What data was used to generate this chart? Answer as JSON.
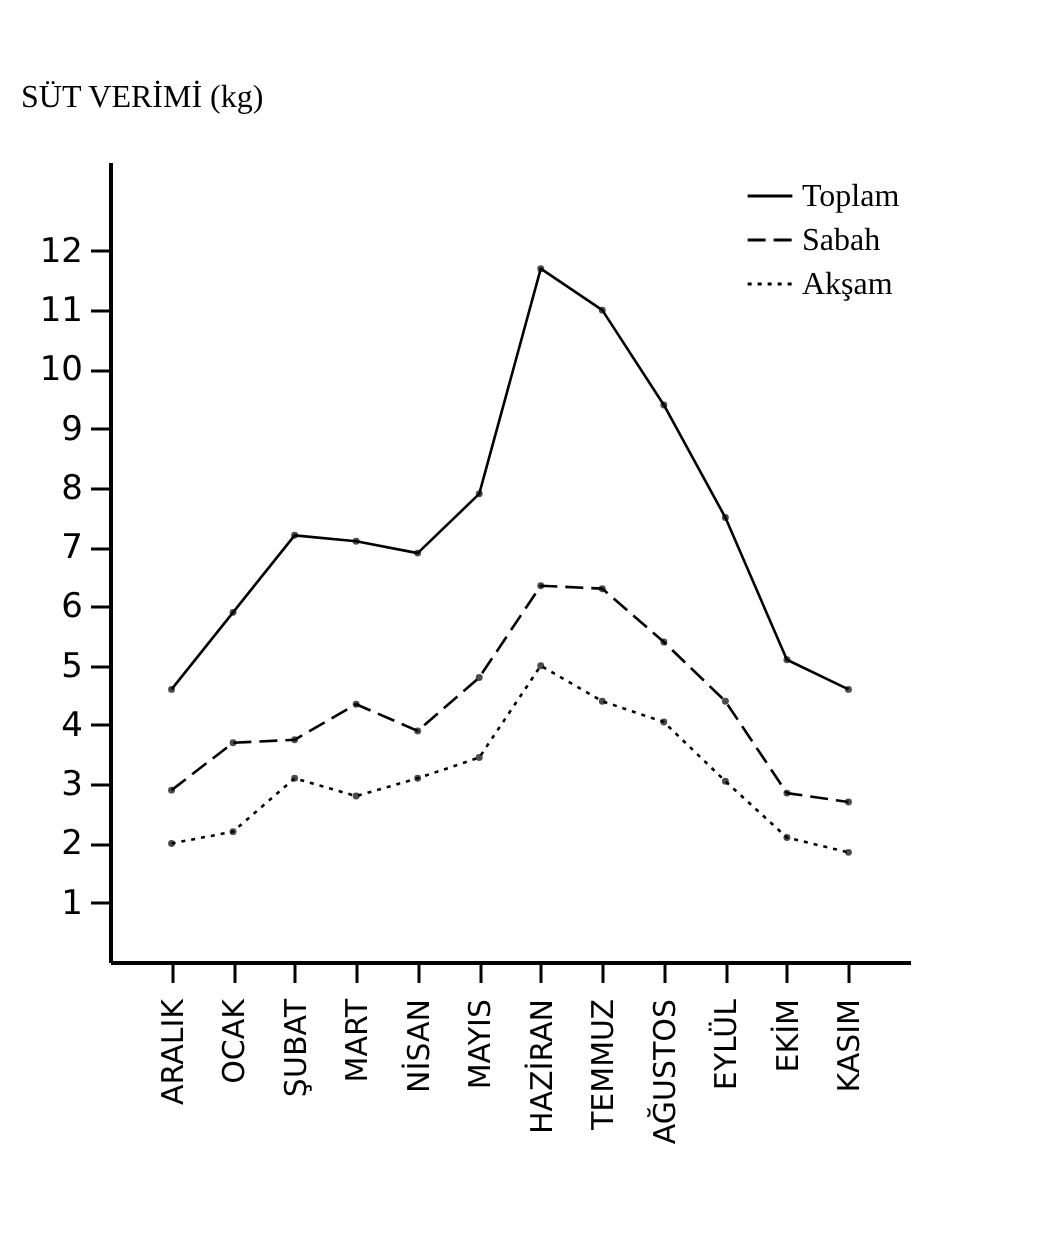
{
  "chart_data": {
    "type": "line",
    "ylabel": "SÜT VERİMİ (kg)",
    "categories": [
      "ARALIK",
      "OCAK",
      "ŞUBAT",
      "MART",
      "NİSAN",
      "MAYIS",
      "HAZİRAN",
      "TEMMUZ",
      "AĞUSTOS",
      "EYLÜL",
      "EKİM",
      "KASIM"
    ],
    "series": [
      {
        "name": "Toplam",
        "color": "#000000",
        "line_style": "solid",
        "values": [
          4.6,
          5.9,
          7.2,
          7.1,
          6.9,
          7.9,
          11.7,
          11.0,
          9.4,
          7.5,
          5.1,
          4.6
        ]
      },
      {
        "name": "Sabah",
        "color": "#000000",
        "line_style": "dashed",
        "values": [
          2.9,
          3.7,
          3.75,
          4.35,
          3.9,
          4.8,
          6.35,
          6.3,
          5.4,
          4.4,
          2.85,
          2.7
        ]
      },
      {
        "name": "Akşam",
        "color": "#000000",
        "line_style": "dotted",
        "values": [
          2.0,
          2.2,
          3.1,
          2.8,
          3.1,
          3.45,
          5.0,
          4.4,
          4.05,
          3.05,
          2.1,
          1.85
        ]
      }
    ],
    "ylim": [
      0,
      13.5
    ],
    "yticks": [
      1,
      2,
      3,
      4,
      5,
      6,
      7,
      8,
      9,
      10,
      11,
      12
    ],
    "grid": false,
    "legend": "top right",
    "marker": "circle"
  }
}
